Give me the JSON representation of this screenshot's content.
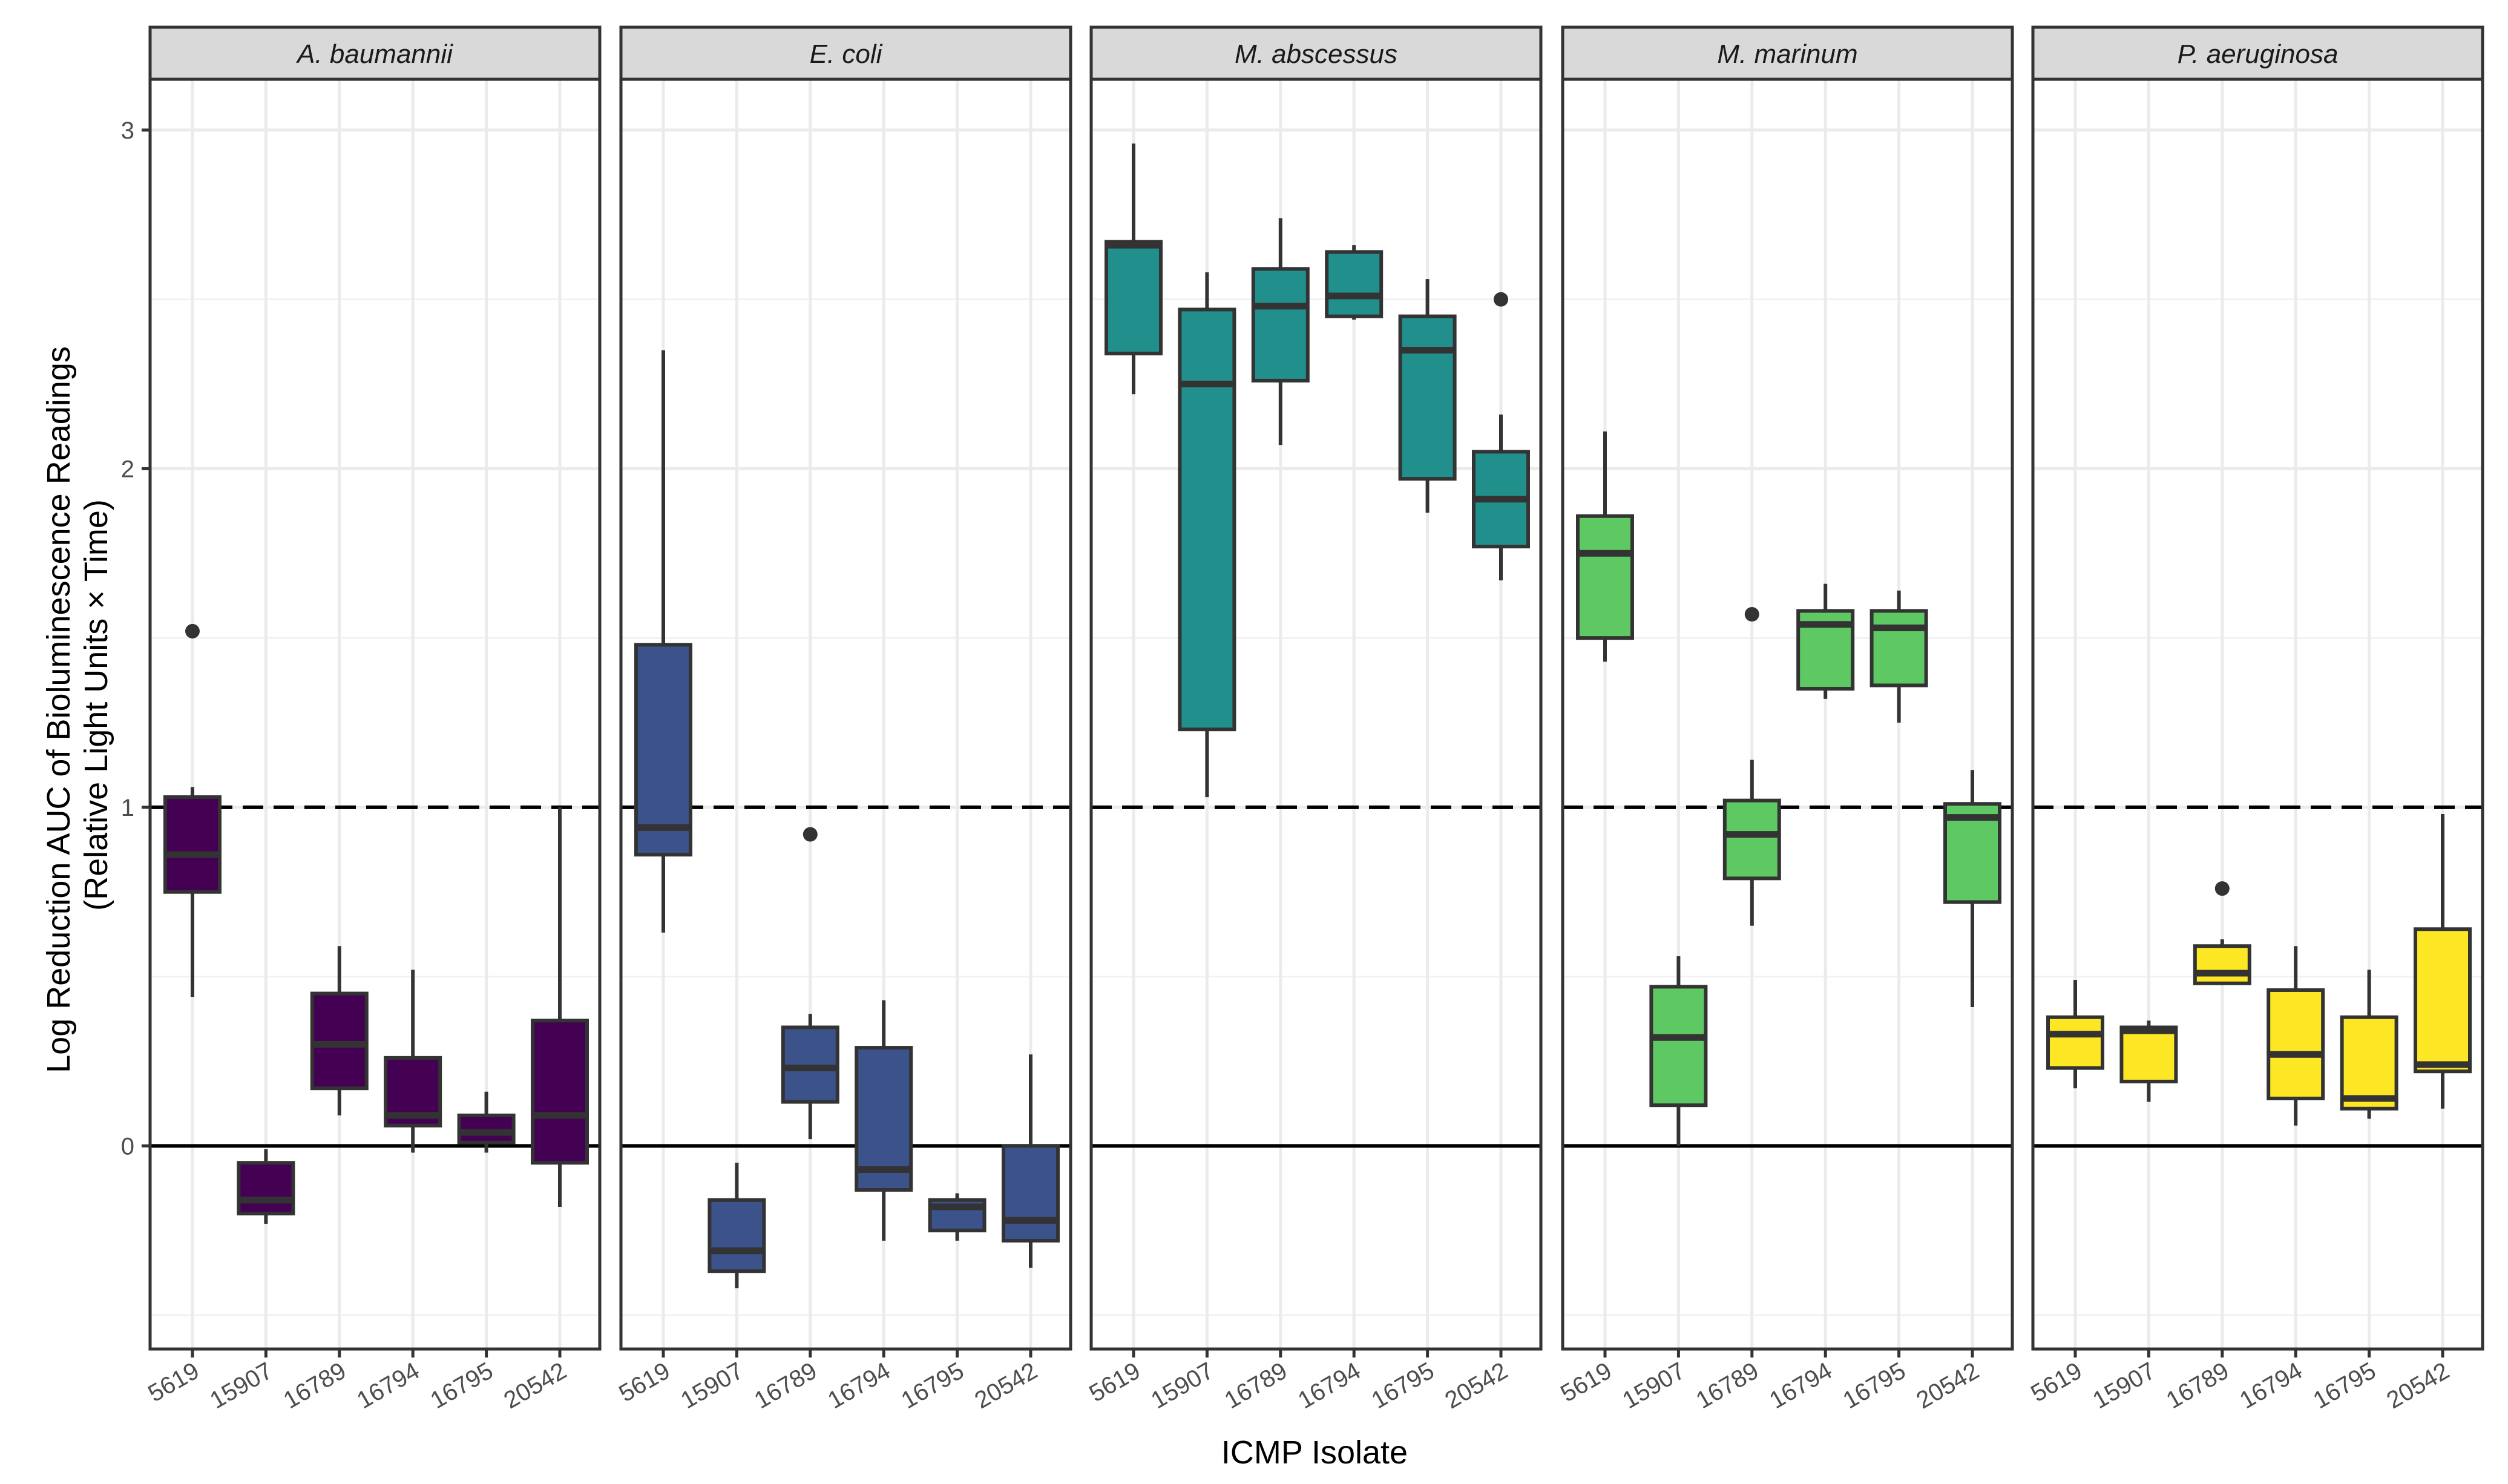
{
  "chart_data": {
    "type": "boxplot",
    "title": "",
    "xlabel": "ICMP Isolate",
    "ylabel_lines": [
      "Log Reduction AUC of Bioluminescence Readings",
      "(Relative Light Units × Time)"
    ],
    "ylim": [
      -0.6,
      3.15
    ],
    "yticks": [
      0,
      1,
      2,
      3
    ],
    "ytick_labels": [
      "0",
      "1",
      "2",
      "3"
    ],
    "categories": [
      "5619",
      "15907",
      "16789",
      "16794",
      "16795",
      "20542"
    ],
    "reference_lines": [
      {
        "y": 1,
        "style": "dashed"
      },
      {
        "y": 0,
        "style": "solid"
      }
    ],
    "panels": [
      {
        "name": "A. baumannii",
        "color": "#440154",
        "boxes": [
          {
            "isolate": "5619",
            "whisker_low": 0.44,
            "q1": 0.75,
            "median": 0.86,
            "q3": 1.03,
            "whisker_high": 1.06,
            "outliers": [
              1.52
            ]
          },
          {
            "isolate": "15907",
            "whisker_low": -0.23,
            "q1": -0.2,
            "median": -0.16,
            "q3": -0.05,
            "whisker_high": -0.01,
            "outliers": []
          },
          {
            "isolate": "16789",
            "whisker_low": 0.09,
            "q1": 0.17,
            "median": 0.3,
            "q3": 0.45,
            "whisker_high": 0.59,
            "outliers": []
          },
          {
            "isolate": "16794",
            "whisker_low": -0.02,
            "q1": 0.06,
            "median": 0.09,
            "q3": 0.26,
            "whisker_high": 0.52,
            "outliers": []
          },
          {
            "isolate": "16795",
            "whisker_low": -0.02,
            "q1": 0.01,
            "median": 0.04,
            "q3": 0.09,
            "whisker_high": 0.16,
            "outliers": []
          },
          {
            "isolate": "20542",
            "whisker_low": -0.18,
            "q1": -0.05,
            "median": 0.09,
            "q3": 0.37,
            "whisker_high": 1.0,
            "outliers": []
          }
        ]
      },
      {
        "name": "E. coli",
        "color": "#3b528b",
        "boxes": [
          {
            "isolate": "5619",
            "whisker_low": 0.63,
            "q1": 0.86,
            "median": 0.94,
            "q3": 1.48,
            "whisker_high": 2.35,
            "outliers": []
          },
          {
            "isolate": "15907",
            "whisker_low": -0.42,
            "q1": -0.37,
            "median": -0.31,
            "q3": -0.16,
            "whisker_high": -0.05,
            "outliers": []
          },
          {
            "isolate": "16789",
            "whisker_low": 0.02,
            "q1": 0.13,
            "median": 0.23,
            "q3": 0.35,
            "whisker_high": 0.39,
            "outliers": [
              0.92
            ]
          },
          {
            "isolate": "16794",
            "whisker_low": -0.28,
            "q1": -0.13,
            "median": -0.07,
            "q3": 0.29,
            "whisker_high": 0.43,
            "outliers": []
          },
          {
            "isolate": "16795",
            "whisker_low": -0.28,
            "q1": -0.25,
            "median": -0.18,
            "q3": -0.16,
            "whisker_high": -0.14,
            "outliers": []
          },
          {
            "isolate": "20542",
            "whisker_low": -0.36,
            "q1": -0.28,
            "median": -0.22,
            "q3": 0.0,
            "whisker_high": 0.27,
            "outliers": []
          }
        ]
      },
      {
        "name": "M. abscessus",
        "color": "#21908c",
        "boxes": [
          {
            "isolate": "5619",
            "whisker_low": 2.22,
            "q1": 2.34,
            "median": 2.66,
            "q3": 2.67,
            "whisker_high": 2.96,
            "outliers": []
          },
          {
            "isolate": "15907",
            "whisker_low": 1.03,
            "q1": 1.23,
            "median": 2.25,
            "q3": 2.47,
            "whisker_high": 2.58,
            "outliers": []
          },
          {
            "isolate": "16789",
            "whisker_low": 2.07,
            "q1": 2.26,
            "median": 2.48,
            "q3": 2.59,
            "whisker_high": 2.74,
            "outliers": []
          },
          {
            "isolate": "16794",
            "whisker_low": 2.44,
            "q1": 2.45,
            "median": 2.51,
            "q3": 2.64,
            "whisker_high": 2.66,
            "outliers": []
          },
          {
            "isolate": "16795",
            "whisker_low": 1.87,
            "q1": 1.97,
            "median": 2.35,
            "q3": 2.45,
            "whisker_high": 2.56,
            "outliers": []
          },
          {
            "isolate": "20542",
            "whisker_low": 1.67,
            "q1": 1.77,
            "median": 1.91,
            "q3": 2.05,
            "whisker_high": 2.16,
            "outliers": [
              2.5
            ]
          }
        ]
      },
      {
        "name": "M. marinum",
        "color": "#5ec962",
        "boxes": [
          {
            "isolate": "5619",
            "whisker_low": 1.43,
            "q1": 1.5,
            "median": 1.75,
            "q3": 1.86,
            "whisker_high": 2.11,
            "outliers": []
          },
          {
            "isolate": "15907",
            "whisker_low": 0.0,
            "q1": 0.12,
            "median": 0.32,
            "q3": 0.47,
            "whisker_high": 0.56,
            "outliers": []
          },
          {
            "isolate": "16789",
            "whisker_low": 0.65,
            "q1": 0.79,
            "median": 0.92,
            "q3": 1.02,
            "whisker_high": 1.14,
            "outliers": [
              1.57
            ]
          },
          {
            "isolate": "16794",
            "whisker_low": 1.32,
            "q1": 1.35,
            "median": 1.54,
            "q3": 1.58,
            "whisker_high": 1.66,
            "outliers": []
          },
          {
            "isolate": "16795",
            "whisker_low": 1.25,
            "q1": 1.36,
            "median": 1.53,
            "q3": 1.58,
            "whisker_high": 1.64,
            "outliers": []
          },
          {
            "isolate": "20542",
            "whisker_low": 0.41,
            "q1": 0.72,
            "median": 0.97,
            "q3": 1.01,
            "whisker_high": 1.11,
            "outliers": []
          }
        ]
      },
      {
        "name": "P. aeruginosa",
        "color": "#fde725",
        "boxes": [
          {
            "isolate": "5619",
            "whisker_low": 0.17,
            "q1": 0.23,
            "median": 0.33,
            "q3": 0.38,
            "whisker_high": 0.49,
            "outliers": []
          },
          {
            "isolate": "15907",
            "whisker_low": 0.13,
            "q1": 0.19,
            "median": 0.34,
            "q3": 0.35,
            "whisker_high": 0.37,
            "outliers": []
          },
          {
            "isolate": "16789",
            "whisker_low": 0.48,
            "q1": 0.48,
            "median": 0.51,
            "q3": 0.59,
            "whisker_high": 0.61,
            "outliers": [
              0.76
            ]
          },
          {
            "isolate": "16794",
            "whisker_low": 0.06,
            "q1": 0.14,
            "median": 0.27,
            "q3": 0.46,
            "whisker_high": 0.59,
            "outliers": []
          },
          {
            "isolate": "16795",
            "whisker_low": 0.08,
            "q1": 0.11,
            "median": 0.14,
            "q3": 0.38,
            "whisker_high": 0.52,
            "outliers": []
          },
          {
            "isolate": "20542",
            "whisker_low": 0.11,
            "q1": 0.22,
            "median": 0.24,
            "q3": 0.64,
            "whisker_high": 0.98,
            "outliers": []
          }
        ]
      }
    ]
  }
}
